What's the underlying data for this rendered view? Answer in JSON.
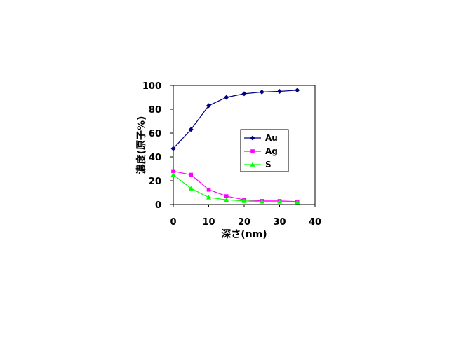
{
  "chart_data": {
    "type": "line",
    "xlabel": "深さ(nm)",
    "ylabel": "濃度(原子%)",
    "xlim": [
      0,
      40
    ],
    "ylim": [
      0,
      100
    ],
    "x_ticks": [
      0,
      10,
      20,
      30,
      40
    ],
    "y_ticks": [
      0,
      20,
      40,
      60,
      80,
      100
    ],
    "grid": false,
    "legend_position": "center-right",
    "series": [
      {
        "name": "Au",
        "color": "#000080",
        "marker": "diamond",
        "points": [
          [
            0,
            47
          ],
          [
            5,
            63
          ],
          [
            10,
            83
          ],
          [
            15,
            90
          ],
          [
            20,
            93
          ],
          [
            25,
            94.5
          ],
          [
            30,
            95
          ],
          [
            35,
            96
          ]
        ]
      },
      {
        "name": "Ag",
        "color": "#ff00ff",
        "marker": "square",
        "points": [
          [
            0,
            28
          ],
          [
            5,
            25
          ],
          [
            10,
            12.5
          ],
          [
            15,
            7
          ],
          [
            20,
            4
          ],
          [
            25,
            3
          ],
          [
            30,
            3
          ],
          [
            35,
            2.5
          ]
        ]
      },
      {
        "name": "S",
        "color": "#00ff00",
        "marker": "triangle",
        "points": [
          [
            0,
            25
          ],
          [
            5,
            13.5
          ],
          [
            10,
            6
          ],
          [
            15,
            4
          ],
          [
            20,
            3
          ],
          [
            25,
            2.5
          ],
          [
            30,
            2.5
          ],
          [
            35,
            2
          ]
        ]
      }
    ]
  }
}
